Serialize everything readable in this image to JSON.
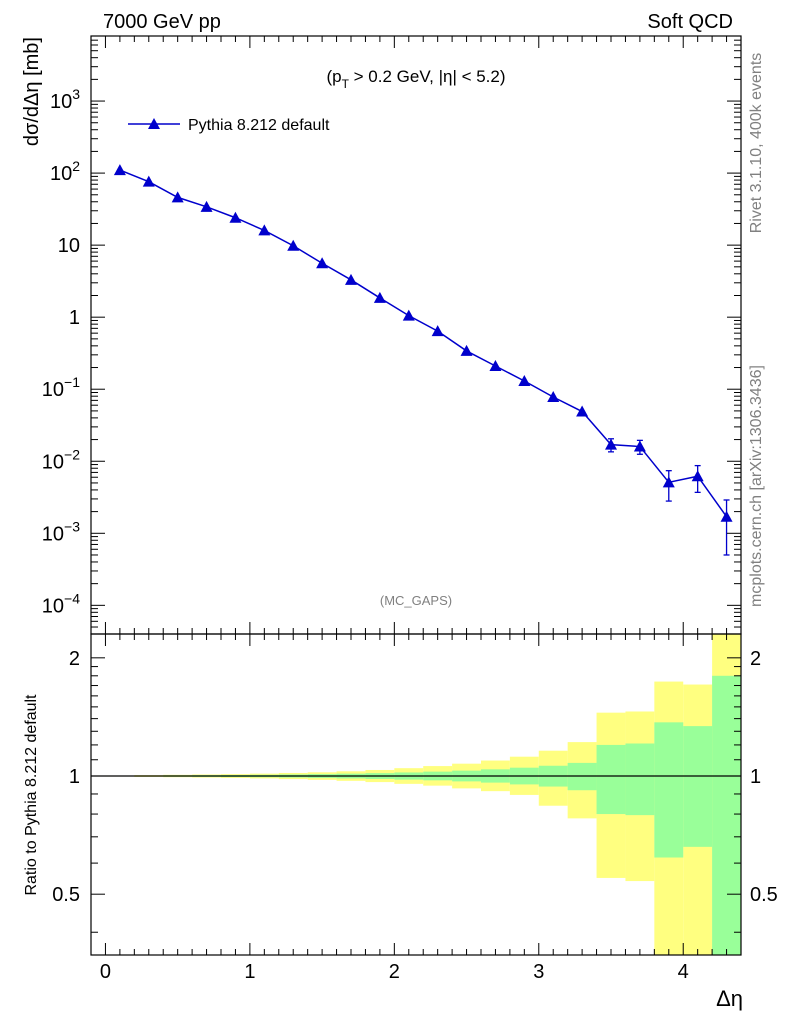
{
  "header": {
    "left": "7000 GeV pp",
    "right": "Soft QCD"
  },
  "side_labels": {
    "rivet": "Rivet 3.1.10,  400k events",
    "mcplots": "mcplots.cern.ch [arXiv:1306.3436]"
  },
  "chart_data": [
    {
      "type": "line",
      "annotation": "(p_T > 0.2 GeV, |η| < 5.2)",
      "ylabel": "dσ/dΔη [mb]",
      "watermark": "(MC_GAPS)",
      "yscale": "log",
      "xlim": [
        -0.1,
        4.4
      ],
      "ylim": [
        4e-05,
        8000
      ],
      "y_ticks": [
        "10^-4",
        "10^-3",
        "10^-2",
        "10^-1",
        "1",
        "10",
        "10^2",
        "10^3"
      ],
      "legend": {
        "placement": "top-left"
      },
      "series": [
        {
          "name": "Pythia 8.212 default",
          "color": "#0000cc",
          "marker": "triangle-up",
          "x": [
            0.1,
            0.3,
            0.5,
            0.7,
            0.9,
            1.1,
            1.3,
            1.5,
            1.7,
            1.9,
            2.1,
            2.3,
            2.5,
            2.7,
            2.9,
            3.1,
            3.3,
            3.5,
            3.7,
            3.9,
            4.1,
            4.3
          ],
          "y": [
            110,
            76,
            46,
            34,
            24,
            16,
            9.8,
            5.6,
            3.3,
            1.85,
            1.05,
            0.64,
            0.34,
            0.21,
            0.13,
            0.078,
            0.049,
            0.017,
            0.016,
            0.0051,
            0.0062,
            0.0017
          ],
          "y_err": [
            1.5,
            1.0,
            0.6,
            0.45,
            0.3,
            0.2,
            0.12,
            0.07,
            0.045,
            0.03,
            0.02,
            0.013,
            0.009,
            0.007,
            0.005,
            0.004,
            0.004,
            0.0035,
            0.0035,
            0.0023,
            0.0025,
            0.0012
          ]
        }
      ]
    },
    {
      "type": "area",
      "ylabel": "Ratio to Pythia 8.212 default",
      "xlabel": "Δη",
      "xlim": [
        -0.1,
        4.4
      ],
      "ylim": [
        0.35,
        2.3
      ],
      "x_ticks": [
        0,
        1,
        2,
        3,
        4
      ],
      "y_ticks": [
        0.5,
        1,
        2
      ],
      "reference_line": 1,
      "bins": [
        0,
        0.2,
        0.4,
        0.6,
        0.8,
        1.0,
        1.2,
        1.4,
        1.6,
        1.8,
        2.0,
        2.2,
        2.4,
        2.6,
        2.8,
        3.0,
        3.2,
        3.4,
        3.6,
        3.8,
        4.0,
        4.2,
        4.4
      ],
      "bands": [
        {
          "name": "stat",
          "color": "#99ff99",
          "lo": [
            0.998,
            0.997,
            0.996,
            0.995,
            0.994,
            0.993,
            0.991,
            0.989,
            0.986,
            0.983,
            0.979,
            0.975,
            0.969,
            0.962,
            0.952,
            0.94,
            0.92,
            0.8,
            0.795,
            0.62,
            0.66,
            0.2
          ],
          "hi": [
            1.002,
            1.003,
            1.004,
            1.005,
            1.006,
            1.007,
            1.009,
            1.011,
            1.014,
            1.017,
            1.021,
            1.026,
            1.032,
            1.04,
            1.05,
            1.062,
            1.08,
            1.2,
            1.21,
            1.37,
            1.34,
            1.8
          ]
        },
        {
          "name": "total",
          "color": "#ffff80",
          "lo": [
            0.997,
            0.995,
            0.993,
            0.991,
            0.989,
            0.986,
            0.982,
            0.978,
            0.972,
            0.965,
            0.955,
            0.945,
            0.93,
            0.915,
            0.895,
            0.84,
            0.78,
            0.55,
            0.54,
            0.2,
            0.2,
            0.2
          ],
          "hi": [
            1.003,
            1.005,
            1.007,
            1.009,
            1.011,
            1.014,
            1.018,
            1.022,
            1.028,
            1.036,
            1.047,
            1.06,
            1.075,
            1.095,
            1.12,
            1.16,
            1.22,
            1.45,
            1.46,
            1.74,
            1.71,
            2.5
          ]
        }
      ]
    }
  ]
}
